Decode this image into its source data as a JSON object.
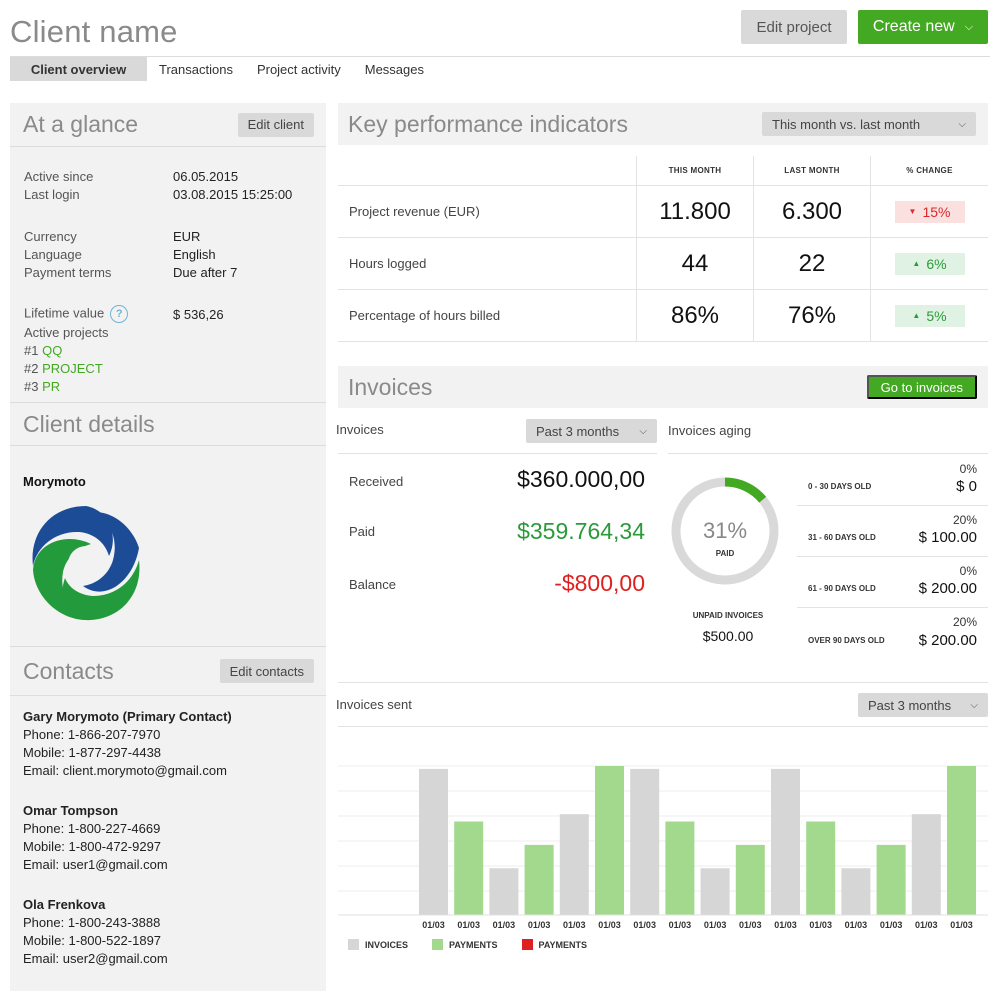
{
  "header": {
    "title": "Client name",
    "edit_project": "Edit project",
    "create_new": "Create new"
  },
  "tabs": [
    {
      "label": "Client overview",
      "active": true
    },
    {
      "label": "Transactions"
    },
    {
      "label": "Project activity"
    },
    {
      "label": "Messages"
    }
  ],
  "glance": {
    "title": "At a glance",
    "edit": "Edit client",
    "active_since_label": "Active since",
    "active_since": "06.05.2015",
    "last_login_label": "Last login",
    "last_login": "03.08.2015 15:25:00",
    "currency_label": "Currency",
    "currency": "EUR",
    "language_label": "Language",
    "language": "English",
    "payment_terms_label": "Payment terms",
    "payment_terms": "Due after 7",
    "lifetime_label": "Lifetime value",
    "lifetime_value": "$ 536,26",
    "active_projects_label": "Active projects",
    "projects": [
      {
        "num": "#1",
        "name": "QQ"
      },
      {
        "num": "#2",
        "name": "PROJECT"
      },
      {
        "num": "#3",
        "name": "PR"
      }
    ]
  },
  "details": {
    "title": "Client details",
    "company": "Morymoto"
  },
  "contacts": {
    "title": "Contacts",
    "edit": "Edit contacts",
    "list": [
      {
        "name": "Gary Morymoto (Primary Contact)",
        "phone": "Phone: 1-866-207-7970",
        "mobile": "Mobile: 1-877-297-4438",
        "email": "Email: client.morymoto@gmail.com"
      },
      {
        "name": "Omar Tompson",
        "phone": "Phone: 1-800-227-4669",
        "mobile": "Mobile: 1-800-472-9297",
        "email": "Email: user1@gmail.com"
      },
      {
        "name": "Ola Frenkova",
        "phone": "Phone: 1-800-243-3888",
        "mobile": "Mobile: 1-800-522-1897",
        "email": "Email: user2@gmail.com"
      }
    ]
  },
  "kpi": {
    "title": "Key performance indicators",
    "period": "This month vs. last month",
    "col_this": "THIS MONTH",
    "col_last": "LAST MONTH",
    "col_change": "% CHANGE",
    "rows": [
      {
        "label": "Project revenue (EUR)",
        "this": "11.800",
        "last": "6.300",
        "change": "15%",
        "dir": "down"
      },
      {
        "label": "Hours logged",
        "this": "44",
        "last": "22",
        "change": "6%",
        "dir": "up"
      },
      {
        "label": "Percentage of hours billed",
        "this": "86%",
        "last": "76%",
        "change": "5%",
        "dir": "up"
      }
    ]
  },
  "invoices": {
    "title": "Invoices",
    "goto": "Go to invoices",
    "sub_label": "Invoices",
    "period": "Past 3 months",
    "aging_label": "Invoices aging",
    "received_label": "Received",
    "received": "$360.000,00",
    "paid_label": "Paid",
    "paid": "$359.764,34",
    "balance_label": "Balance",
    "balance": "-$800,00",
    "donut_pct": "31%",
    "donut_value": 31,
    "donut_label": "PAID",
    "unpaid_label": "UNPAID INVOICES",
    "unpaid_value": "$500.00",
    "aging": [
      {
        "range": "0 - 30 DAYS OLD",
        "pct": "0%",
        "amount": "$ 0"
      },
      {
        "range": "31 - 60 DAYS OLD",
        "pct": "20%",
        "amount": "$ 100.00"
      },
      {
        "range": "61 - 90 DAYS OLD",
        "pct": "0%",
        "amount": "$ 200.00"
      },
      {
        "range": "OVER 90 DAYS OLD",
        "pct": "20%",
        "amount": "$ 200.00"
      }
    ]
  },
  "sent": {
    "label": "Invoices sent",
    "period": "Past 3 months",
    "legend": [
      {
        "label": "INVOICES",
        "color": "#d6d6d6"
      },
      {
        "label": "PAYMENTS",
        "color": "#a3d98d"
      },
      {
        "label": "PAYMENTS",
        "color": "#e02020"
      }
    ]
  },
  "colors": {
    "accent_green": "#43a922",
    "invoice_bar": "#d6d6d6",
    "payment_bar": "#a3d98d",
    "donut_track": "#d9d9d9",
    "donut_fill": "#43a922"
  },
  "chart_data": {
    "type": "bar",
    "categories": [
      "01/03",
      "01/03",
      "01/03",
      "01/03",
      "01/03",
      "01/03",
      "01/03",
      "01/03",
      "01/03",
      "01/03",
      "01/03",
      "01/03",
      "01/03",
      "01/03",
      "01/03",
      "01/03"
    ],
    "values": [
      100,
      64,
      32,
      48,
      69,
      102,
      100,
      64,
      32,
      48,
      100,
      64,
      32,
      48,
      69,
      102
    ],
    "colors": [
      "invoice",
      "payment",
      "invoice",
      "payment",
      "invoice",
      "payment",
      "invoice",
      "payment",
      "invoice",
      "payment",
      "invoice",
      "payment",
      "invoice",
      "payment",
      "invoice",
      "payment"
    ],
    "ylim": [
      0,
      102
    ],
    "grid": true
  }
}
